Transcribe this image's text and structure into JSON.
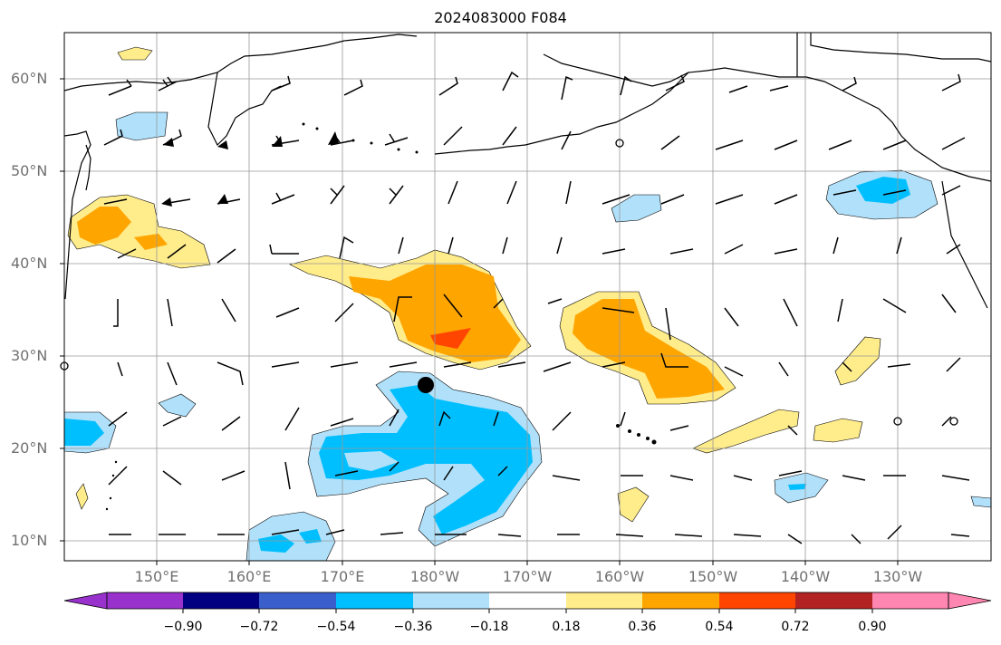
{
  "title": "2024083000 F084",
  "lat_labels": [
    "60°N",
    "50°N",
    "40°N",
    "30°N",
    "20°N",
    "10°N"
  ],
  "lon_labels": [
    "150°E",
    "160°E",
    "170°E",
    "180°W",
    "170°W",
    "160°W",
    "150°W",
    "140°W",
    "130°W"
  ],
  "colorbar": {
    "ticks": [
      "−0.90",
      "−0.72",
      "−0.54",
      "−0.36",
      "−0.18",
      "0.18",
      "0.36",
      "0.54",
      "0.72",
      "0.90"
    ],
    "colors": [
      "#9932cc",
      "#000080",
      "#3a5fcd",
      "#00bfff",
      "#b0e0fa",
      "#ffffff",
      "#ffec8b",
      "#ffa500",
      "#ff4500",
      "#b22222",
      "#ff86b0"
    ]
  },
  "map": {
    "domain": "North Pacific",
    "lon_range": [
      140,
      240
    ],
    "lat_range": [
      8,
      65
    ],
    "fill_colors": {
      "neg_strong": "#00bfff",
      "neg_weak": "#b0e0fa",
      "pos_weak": "#ffec8b",
      "pos_mid": "#ffa500",
      "pos_strong": "#ff4500"
    },
    "marker": "storm-position-dot"
  }
}
